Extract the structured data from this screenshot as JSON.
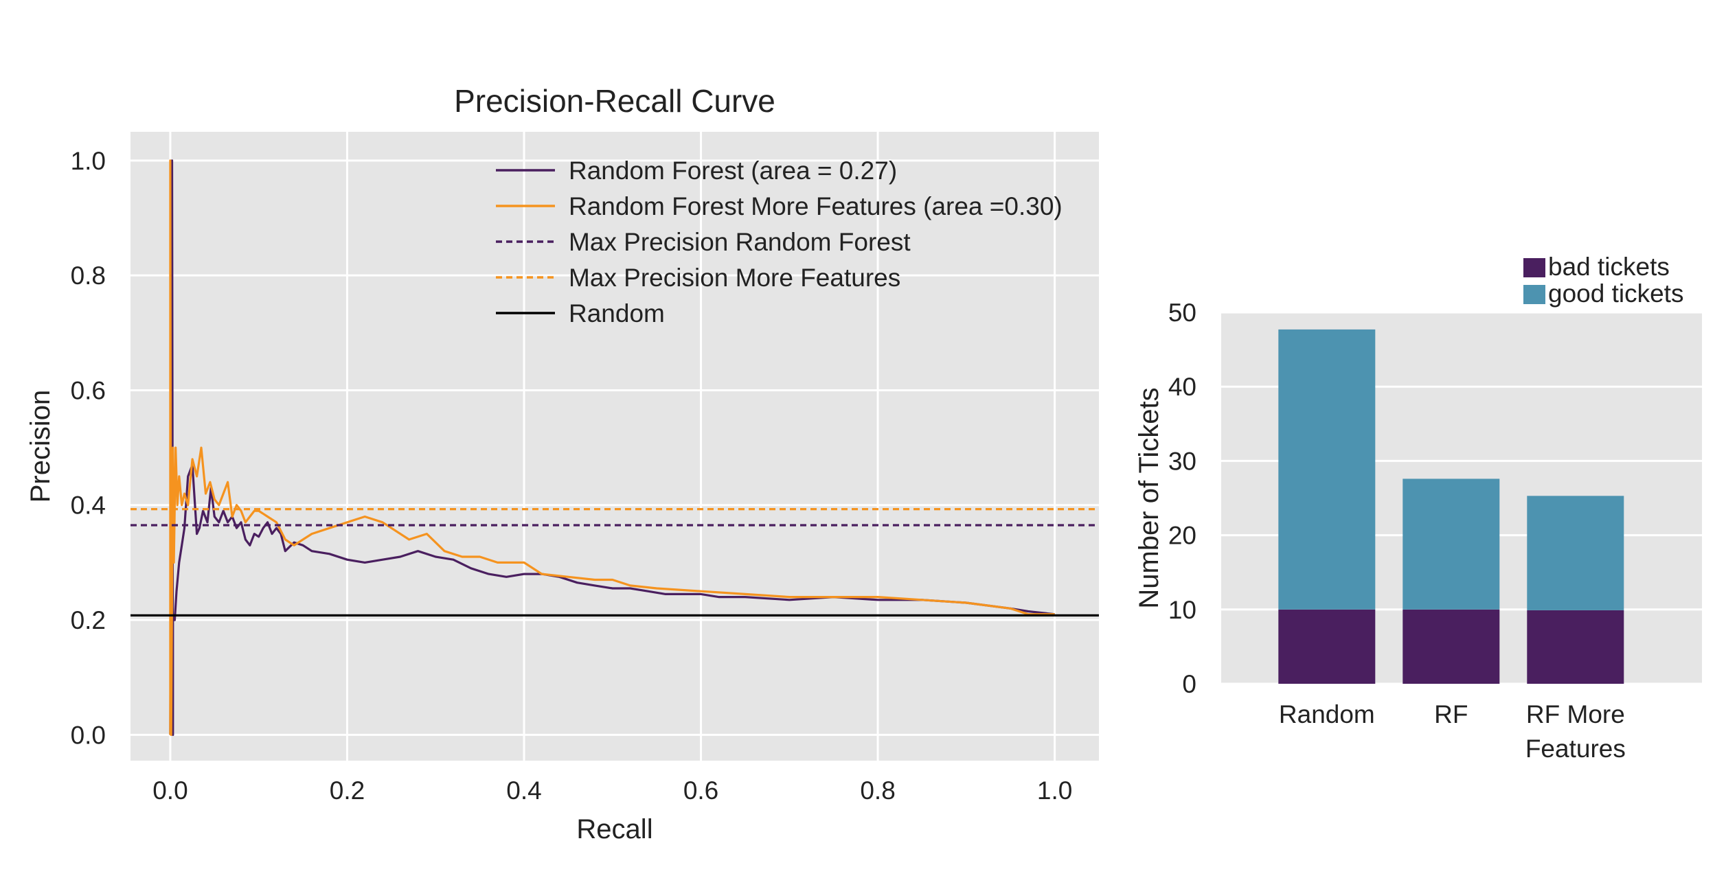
{
  "colors": {
    "rf": "#4a1f5f",
    "rf_more": "#f5931f",
    "random": "#000000",
    "bad_tickets": "#4a1f5f",
    "good_tickets": "#4d93b0",
    "panel_bg": "#e5e5e5",
    "grid": "#ffffff"
  },
  "chart_data": [
    {
      "type": "line",
      "title": "Precision-Recall Curve",
      "xlabel": "Recall",
      "ylabel": "Precision",
      "xlim": [
        -0.045,
        1.05
      ],
      "ylim": [
        -0.045,
        1.05
      ],
      "xticks": [
        0.0,
        0.2,
        0.4,
        0.6,
        0.8,
        1.0
      ],
      "xtick_labels": [
        "0.0",
        "0.2",
        "0.4",
        "0.6",
        "0.8",
        "1.0"
      ],
      "yticks": [
        0.0,
        0.2,
        0.4,
        0.6,
        0.8,
        1.0
      ],
      "ytick_labels": [
        "0.0",
        "0.2",
        "0.4",
        "0.6",
        "0.8",
        "1.0"
      ],
      "grid": true,
      "legend_position": "top-right",
      "series": [
        {
          "name": "Random Forest (area = 0.27)",
          "color_key": "rf",
          "style": "solid",
          "x": [
            0.0,
            0.002,
            0.003,
            0.003,
            0.005,
            0.007,
            0.01,
            0.013,
            0.016,
            0.02,
            0.025,
            0.03,
            0.033,
            0.037,
            0.042,
            0.046,
            0.05,
            0.055,
            0.06,
            0.065,
            0.07,
            0.075,
            0.08,
            0.085,
            0.09,
            0.095,
            0.1,
            0.105,
            0.11,
            0.115,
            0.12,
            0.125,
            0.13,
            0.14,
            0.15,
            0.16,
            0.18,
            0.2,
            0.22,
            0.24,
            0.26,
            0.28,
            0.3,
            0.32,
            0.34,
            0.36,
            0.38,
            0.4,
            0.42,
            0.44,
            0.46,
            0.48,
            0.5,
            0.52,
            0.54,
            0.56,
            0.58,
            0.6,
            0.62,
            0.65,
            0.7,
            0.75,
            0.8,
            0.85,
            0.9,
            0.95,
            0.97,
            1.0
          ],
          "y": [
            0.0,
            1.0,
            0.0,
            0.2,
            0.2,
            0.25,
            0.3,
            0.33,
            0.36,
            0.45,
            0.47,
            0.35,
            0.36,
            0.39,
            0.37,
            0.43,
            0.38,
            0.37,
            0.39,
            0.37,
            0.38,
            0.36,
            0.37,
            0.34,
            0.33,
            0.35,
            0.345,
            0.36,
            0.37,
            0.35,
            0.36,
            0.35,
            0.32,
            0.335,
            0.33,
            0.32,
            0.315,
            0.305,
            0.3,
            0.305,
            0.31,
            0.32,
            0.31,
            0.305,
            0.29,
            0.28,
            0.275,
            0.28,
            0.28,
            0.275,
            0.265,
            0.26,
            0.255,
            0.255,
            0.25,
            0.245,
            0.245,
            0.245,
            0.24,
            0.24,
            0.235,
            0.24,
            0.235,
            0.235,
            0.23,
            0.22,
            0.215,
            0.21
          ]
        },
        {
          "name": "Random Forest More Features (area =0.30)",
          "color_key": "rf_more",
          "style": "solid",
          "x": [
            0.0,
            0.0,
            0.001,
            0.002,
            0.003,
            0.004,
            0.006,
            0.008,
            0.01,
            0.013,
            0.016,
            0.02,
            0.025,
            0.03,
            0.035,
            0.04,
            0.045,
            0.05,
            0.055,
            0.06,
            0.065,
            0.07,
            0.075,
            0.08,
            0.085,
            0.09,
            0.095,
            0.1,
            0.11,
            0.12,
            0.13,
            0.14,
            0.15,
            0.16,
            0.18,
            0.2,
            0.22,
            0.24,
            0.25,
            0.27,
            0.29,
            0.31,
            0.33,
            0.35,
            0.37,
            0.4,
            0.42,
            0.45,
            0.48,
            0.5,
            0.52,
            0.55,
            0.6,
            0.65,
            0.7,
            0.75,
            0.8,
            0.85,
            0.9,
            0.95,
            0.97,
            1.0
          ],
          "y": [
            0.0,
            1.0,
            0.0,
            0.25,
            0.5,
            0.3,
            0.5,
            0.4,
            0.45,
            0.4,
            0.42,
            0.4,
            0.48,
            0.45,
            0.5,
            0.42,
            0.44,
            0.41,
            0.4,
            0.42,
            0.44,
            0.38,
            0.4,
            0.39,
            0.37,
            0.38,
            0.39,
            0.39,
            0.38,
            0.37,
            0.34,
            0.33,
            0.34,
            0.35,
            0.36,
            0.37,
            0.38,
            0.37,
            0.36,
            0.34,
            0.35,
            0.32,
            0.31,
            0.31,
            0.3,
            0.3,
            0.28,
            0.275,
            0.27,
            0.27,
            0.26,
            0.255,
            0.25,
            0.245,
            0.24,
            0.24,
            0.24,
            0.235,
            0.23,
            0.22,
            0.21,
            0.21
          ]
        },
        {
          "name": "Max Precision Random Forest",
          "color_key": "rf",
          "style": "dashed",
          "x": [
            -0.045,
            1.05
          ],
          "y": [
            0.365,
            0.365
          ]
        },
        {
          "name": "Max Precision More Features",
          "color_key": "rf_more",
          "style": "dashed",
          "x": [
            -0.045,
            1.05
          ],
          "y": [
            0.393,
            0.393
          ]
        },
        {
          "name": "Random",
          "color_key": "random",
          "style": "solid",
          "x": [
            -0.045,
            1.05
          ],
          "y": [
            0.208,
            0.208
          ]
        }
      ]
    },
    {
      "type": "bar",
      "stacked": true,
      "title": "",
      "xlabel": "",
      "ylabel": "Number of Tickets",
      "ylim": [
        0,
        50
      ],
      "yticks": [
        0,
        10,
        20,
        30,
        40,
        50
      ],
      "ytick_labels": [
        "0",
        "10",
        "20",
        "30",
        "40",
        "50"
      ],
      "categories": [
        [
          "Random"
        ],
        [
          "RF"
        ],
        [
          "RF More",
          "Features"
        ]
      ],
      "grid": true,
      "legend_position": "top-right",
      "series": [
        {
          "name": "bad tickets",
          "color_key": "bad_tickets",
          "values": [
            10,
            10,
            9.9
          ]
        },
        {
          "name": "good tickets",
          "color_key": "good_tickets",
          "values": [
            37.7,
            17.6,
            15.4
          ]
        }
      ]
    }
  ]
}
